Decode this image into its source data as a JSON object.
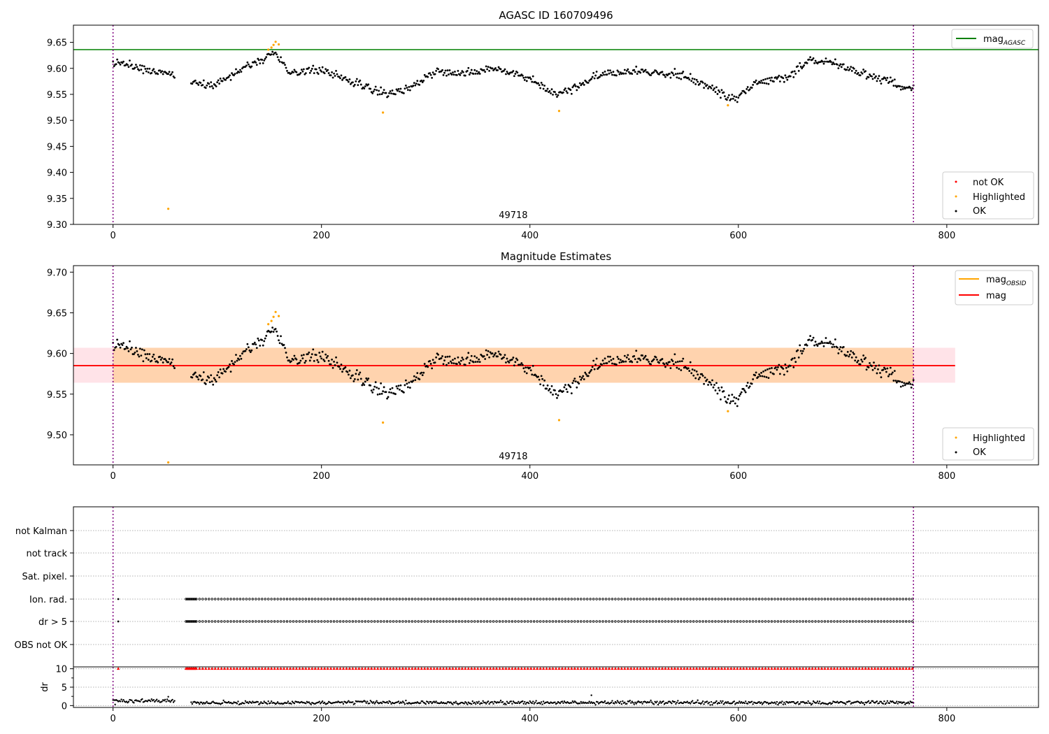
{
  "chart_data": [
    {
      "type": "scatter",
      "title": "AGASC ID 160709496",
      "xlim": [
        -38,
        888
      ],
      "ylim": [
        9.3,
        9.683
      ],
      "xticks": [
        0,
        200,
        400,
        600,
        800
      ],
      "yticks": [
        9.3,
        9.35,
        9.4,
        9.45,
        9.5,
        9.55,
        9.6,
        9.65
      ],
      "x_tick_labels": [
        "0",
        "200",
        "400",
        "600",
        "800"
      ],
      "y_tick_labels": [
        "9.30",
        "9.35",
        "9.40",
        "9.45",
        "9.50",
        "9.55",
        "9.60",
        "9.65"
      ],
      "annotation": {
        "text": "49718",
        "x": 384
      },
      "obsid_bounds": [
        0,
        768
      ],
      "mag_agasc": 9.636,
      "highlighted": [
        [
          53,
          9.33
        ],
        [
          152,
          9.64
        ],
        [
          154,
          9.645
        ],
        [
          156,
          9.651
        ],
        [
          159,
          9.646
        ],
        [
          149,
          9.636
        ],
        [
          259,
          9.515
        ],
        [
          428,
          9.518
        ],
        [
          590,
          9.529
        ]
      ],
      "lines_legend": [
        {
          "label": "mag",
          "sub": "AGASC",
          "color": "#008000"
        }
      ],
      "points_legend": [
        {
          "label": "not OK",
          "color": "#ff0000"
        },
        {
          "label": "Highlighted",
          "color": "#ffa500"
        },
        {
          "label": "OK",
          "color": "#000000"
        }
      ]
    },
    {
      "type": "scatter",
      "title": "Magnitude Estimates",
      "xlim": [
        -38,
        888
      ],
      "ylim": [
        9.463,
        9.708
      ],
      "xticks": [
        0,
        200,
        400,
        600,
        800
      ],
      "yticks": [
        9.5,
        9.55,
        9.6,
        9.65,
        9.7
      ],
      "x_tick_labels": [
        "0",
        "200",
        "400",
        "600",
        "800"
      ],
      "y_tick_labels": [
        "9.50",
        "9.55",
        "9.60",
        "9.65",
        "9.70"
      ],
      "annotation": {
        "text": "49718",
        "x": 384
      },
      "obsid_bounds": [
        0,
        768
      ],
      "mag": 9.585,
      "mag_band": [
        9.564,
        9.607
      ],
      "band_x": [
        -38,
        808
      ],
      "mag_obsid": 9.585,
      "mag_obsid_band": [
        9.564,
        9.607
      ],
      "obsid_band_x": [
        0,
        768
      ],
      "highlighted": [
        [
          53,
          9.466
        ],
        [
          152,
          9.64
        ],
        [
          154,
          9.645
        ],
        [
          156,
          9.651
        ],
        [
          159,
          9.646
        ],
        [
          149,
          9.636
        ],
        [
          259,
          9.515
        ],
        [
          428,
          9.518
        ],
        [
          590,
          9.529
        ]
      ],
      "lines_legend": [
        {
          "label": "mag",
          "sub": "OBSID",
          "color": "#ffa500"
        },
        {
          "label": "mag",
          "sub": "",
          "color": "#ff0000"
        }
      ],
      "points_legend": [
        {
          "label": "Highlighted",
          "color": "#ffa500"
        },
        {
          "label": "OK",
          "color": "#000000"
        }
      ]
    },
    {
      "type": "scatter",
      "title": "",
      "flag_rows": [
        "not Kalman",
        "not track",
        "Sat. pixel.",
        "Ion. rad.",
        "dr > 5",
        "OBS not OK"
      ],
      "flag_ranges": [
        {
          "row": "Ion. rad.",
          "points": [
            5
          ],
          "from": 70,
          "to": 768
        },
        {
          "row": "dr > 5",
          "points": [
            5
          ],
          "from": 70,
          "to": 768
        }
      ],
      "obsid_bounds": [
        0,
        768
      ]
    },
    {
      "type": "scatter",
      "xlim": [
        -38,
        888
      ],
      "ylim": [
        -0.5,
        10.5
      ],
      "xticks": [
        0,
        200,
        400,
        600,
        800
      ],
      "x_tick_labels": [
        "0",
        "200",
        "400",
        "600",
        "800"
      ],
      "yticks": [
        0,
        5,
        10
      ],
      "y_tick_labels": [
        "0",
        "5",
        "10"
      ],
      "ylabel": "dr",
      "dr_clip_value": 10,
      "dr_clip_points": [
        5
      ],
      "dr_clip_from": 70,
      "dr_clip_to": 768,
      "dr_outliers": [
        [
          53,
          2.4
        ],
        [
          459,
          2.8
        ],
        [
          2,
          0.3
        ]
      ],
      "obsid_bounds": [
        0,
        768
      ]
    }
  ]
}
